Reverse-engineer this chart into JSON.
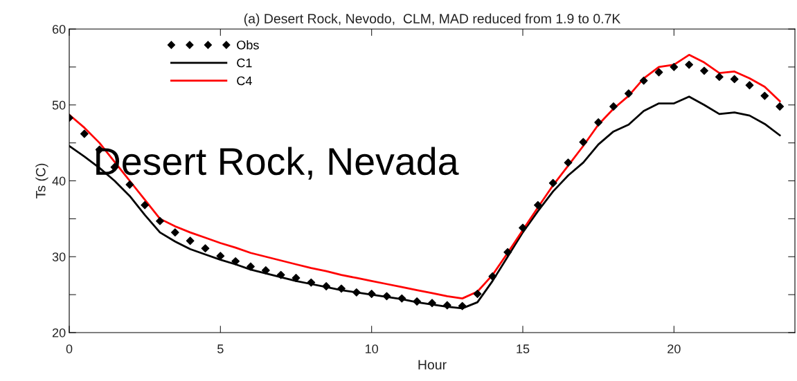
{
  "chart_data": {
    "type": "line",
    "title": "(a) Desert Rock, Nevodo,  CLM, MAD reduced from 1.9 to 0.7K",
    "xlabel": "Hour",
    "ylabel": "Ts (C)",
    "annotations": [
      "Desert Rock, Nevada"
    ],
    "x": [
      0,
      0.5,
      1,
      1.5,
      2,
      2.5,
      3,
      3.5,
      4,
      4.5,
      5,
      5.5,
      6,
      6.5,
      7,
      7.5,
      8,
      8.5,
      9,
      9.5,
      10,
      10.5,
      11,
      11.5,
      12,
      12.5,
      13,
      13.5,
      14,
      14.5,
      15,
      15.5,
      16,
      16.5,
      17,
      17.5,
      18,
      18.5,
      19,
      19.5,
      20,
      20.5,
      21,
      21.5,
      22,
      22.5,
      23,
      23.5
    ],
    "series": [
      {
        "name": "Obs",
        "type": "scatter",
        "marker": "diamond",
        "color": "#000000",
        "values": [
          48.3,
          46.2,
          44.1,
          41.8,
          39.5,
          36.8,
          34.7,
          33.2,
          32.1,
          31.1,
          30.1,
          29.4,
          28.7,
          28.2,
          27.6,
          27.2,
          26.6,
          26.1,
          25.8,
          25.3,
          25.1,
          24.8,
          24.5,
          24.1,
          23.9,
          23.6,
          23.5,
          25.1,
          27.4,
          30.6,
          33.8,
          36.8,
          39.7,
          42.4,
          45.1,
          47.7,
          49.8,
          51.5,
          53.2,
          54.3,
          55.0,
          55.3,
          54.5,
          53.7,
          53.4,
          52.6,
          51.2,
          49.8
        ]
      },
      {
        "name": "C1",
        "type": "line",
        "color": "#000000",
        "values": [
          44.6,
          43.2,
          41.7,
          40.0,
          38.0,
          35.5,
          33.2,
          32.0,
          31.0,
          30.3,
          29.6,
          29.0,
          28.3,
          27.8,
          27.3,
          26.8,
          26.4,
          26.0,
          25.6,
          25.3,
          25.0,
          24.7,
          24.4,
          24.0,
          23.7,
          23.4,
          23.2,
          24.0,
          26.8,
          30.0,
          33.2,
          36.0,
          38.6,
          40.7,
          42.4,
          44.8,
          46.5,
          47.4,
          49.2,
          50.2,
          50.2,
          51.1,
          50.0,
          48.8,
          49.0,
          48.6,
          47.5,
          46.0
        ]
      },
      {
        "name": "C4",
        "type": "line",
        "color": "#ff0000",
        "values": [
          48.7,
          47.0,
          45.0,
          42.5,
          40.0,
          37.5,
          35.0,
          34.0,
          33.2,
          32.5,
          31.8,
          31.2,
          30.5,
          30.0,
          29.5,
          29.0,
          28.5,
          28.1,
          27.6,
          27.2,
          26.8,
          26.4,
          26.0,
          25.6,
          25.2,
          24.8,
          24.5,
          25.4,
          27.6,
          30.5,
          33.5,
          36.5,
          39.4,
          42.0,
          44.6,
          47.4,
          49.5,
          51.2,
          53.5,
          55.0,
          55.3,
          56.6,
          55.6,
          54.2,
          54.4,
          53.5,
          52.4,
          50.5
        ]
      }
    ],
    "xlim": [
      0,
      24
    ],
    "xticks": [
      0,
      5,
      10,
      15,
      20
    ],
    "ylim": [
      20,
      60
    ],
    "yticks": [
      20,
      {
        "value": 25,
        "label": null
      },
      30,
      {
        "value": 35,
        "label": null
      },
      40,
      {
        "value": 45,
        "label": null
      },
      50,
      {
        "value": 55,
        "label": null
      },
      60
    ],
    "grid": false,
    "legend": "top left",
    "line_style": "solid"
  }
}
